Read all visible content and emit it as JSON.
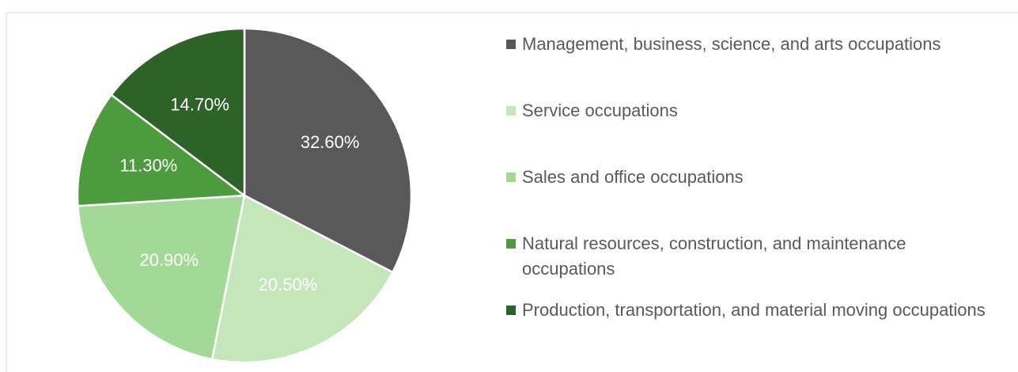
{
  "chart_data": {
    "type": "pie",
    "categories": [
      "Management, business, science, and arts occupations",
      "Service occupations",
      "Sales and office occupations",
      "Natural resources, construction, and maintenance occupations",
      "Production, transportation, and material moving occupations"
    ],
    "values": [
      32.6,
      20.5,
      20.9,
      11.3,
      14.7
    ],
    "value_labels": [
      "32.60%",
      "20.50%",
      "20.90%",
      "11.30%",
      "14.70%"
    ],
    "colors": [
      "#595959",
      "#c5e5bb",
      "#a3d996",
      "#4e9a3e",
      "#2e6327"
    ]
  }
}
